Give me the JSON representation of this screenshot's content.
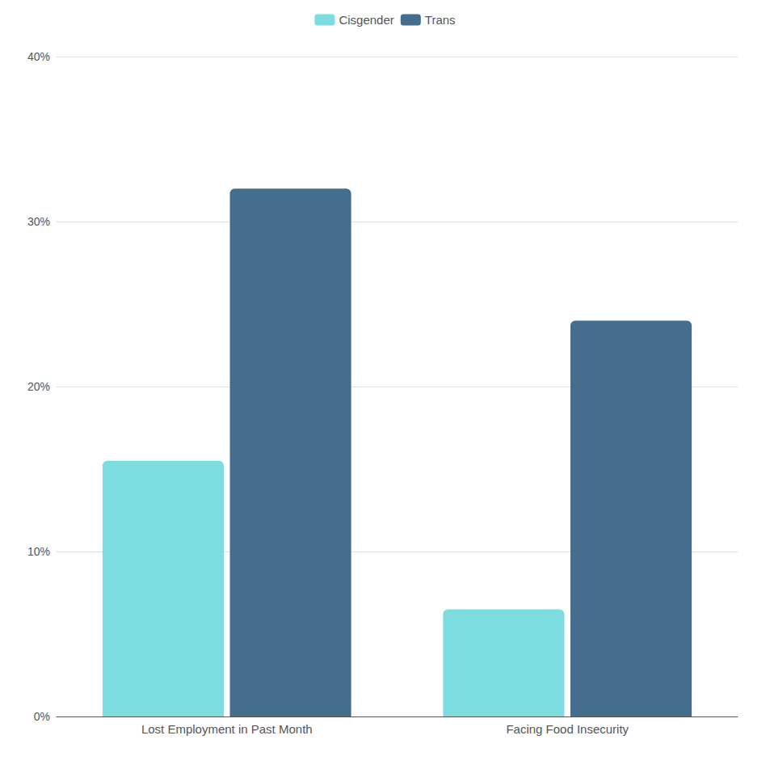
{
  "chart_data": {
    "type": "bar",
    "categories": [
      "Lost Employment in Past Month",
      "Facing Food Insecurity"
    ],
    "series": [
      {
        "name": "Cisgender",
        "color": "#7DDCE0",
        "values": [
          15.5,
          6.5
        ]
      },
      {
        "name": "Trans",
        "color": "#456E8C",
        "values": [
          32.0,
          24.0
        ]
      }
    ],
    "ylim": [
      0,
      40
    ],
    "yticks": [
      {
        "value": 0,
        "label": "0%"
      },
      {
        "value": 10,
        "label": "10%"
      },
      {
        "value": 20,
        "label": "20%"
      },
      {
        "value": 30,
        "label": "30%"
      },
      {
        "value": 40,
        "label": "40%"
      }
    ],
    "grid": true,
    "legend": "top"
  }
}
